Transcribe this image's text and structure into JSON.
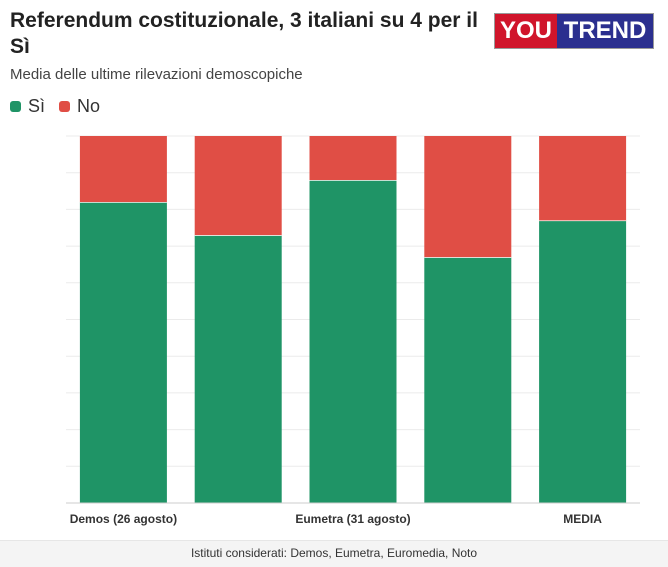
{
  "header": {
    "title": "Referendum costituzionale, 3 italiani su 4 per il Sì",
    "subtitle": "Media delle ultime rilevazioni demoscopiche"
  },
  "logo": {
    "part1": "YOU",
    "part2": "TREND",
    "color1": "#d0152b",
    "color2": "#2b2f8f"
  },
  "legend": [
    {
      "label": "Sì",
      "color": "#1f9466"
    },
    {
      "label": "No",
      "color": "#e04e45"
    }
  ],
  "chart_data": {
    "type": "bar",
    "stacked": true,
    "categories": [
      "Demos (26 agosto)",
      "",
      "Eumetra (31 agosto)",
      "",
      "MEDIA"
    ],
    "series": [
      {
        "name": "Sì",
        "color": "#1f9466",
        "values": [
          82,
          73,
          88,
          67,
          77
        ]
      },
      {
        "name": "No",
        "color": "#e04e45",
        "values": [
          18,
          27,
          12,
          33,
          23
        ]
      }
    ],
    "ylim": [
      0,
      100
    ],
    "grid": true,
    "legend_position": "top-left"
  },
  "footer": {
    "note": "Istituti considerati: Demos, Eumetra, Euromedia, Noto"
  }
}
